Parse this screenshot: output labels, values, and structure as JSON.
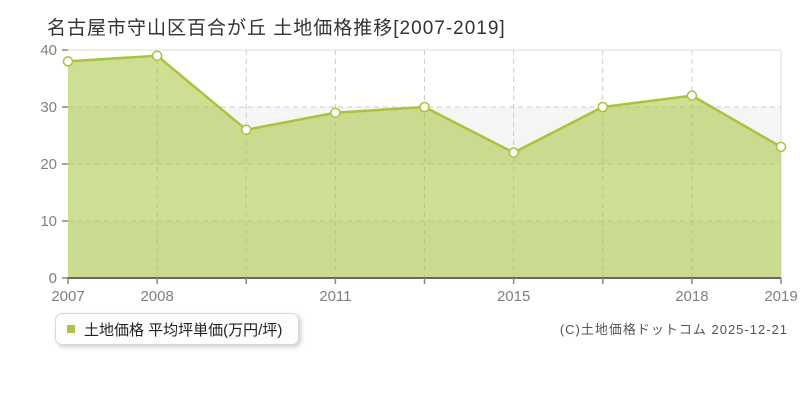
{
  "title": "名古屋市守山区百合が丘 土地価格推移[2007-2019]",
  "legend": {
    "label": "土地価格 平均坪単価(万円/坪)"
  },
  "footer": {
    "text": "(C)土地価格ドットコム 2025-12-21"
  },
  "chart_data": {
    "type": "area",
    "title": "名古屋市守山区百合が丘 土地価格推移[2007-2019]",
    "x_tick_labels": [
      "2007",
      "2008",
      "",
      "2011",
      "",
      "2015",
      "",
      "2018",
      "2019"
    ],
    "values": [
      38,
      39,
      26,
      29,
      30,
      22,
      30,
      32,
      23
    ],
    "series_name": "土地価格 平均坪単価(万円/坪)",
    "ylabel": "",
    "xlabel": "",
    "ylim": [
      0,
      40
    ],
    "yticks": [
      0,
      10,
      20,
      30,
      40
    ],
    "grid": "dashed",
    "legend_position": "bottom-left",
    "colors": {
      "line": "#a6c43c",
      "fill_opacity": 0.55,
      "marker_fill": "#ffffff",
      "grid": "#cccccc",
      "band_alt": "#f5f5f5",
      "band": "#ffffff",
      "border": "#dddddd",
      "axis": "#666666",
      "tick": "#888888",
      "tick_text": "#808080",
      "title_text": "#333333"
    }
  }
}
